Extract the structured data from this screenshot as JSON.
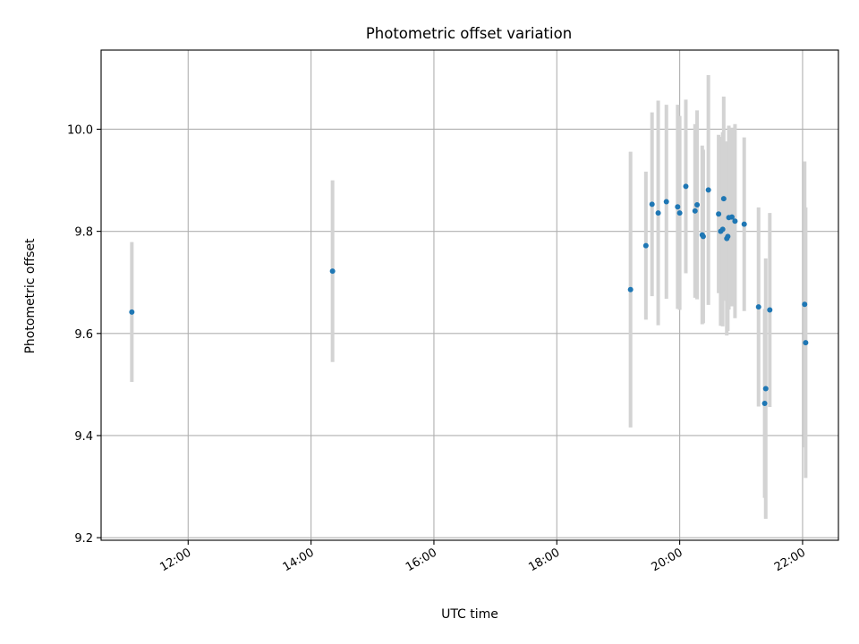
{
  "chart_data": {
    "type": "scatter",
    "title": "Photometric offset variation",
    "xlabel": "UTC time",
    "ylabel": "Photometric offset",
    "x_tick_labels": [
      "12:00",
      "14:00",
      "16:00",
      "18:00",
      "20:00",
      "22:00"
    ],
    "y_tick_labels": [
      "9.2",
      "9.4",
      "9.6",
      "9.8",
      "10.0"
    ],
    "xlim": [
      "10:35",
      "22:35"
    ],
    "ylim": [
      9.195,
      10.155
    ],
    "grid": true,
    "colors": {
      "marker": "#1f77b4",
      "errorbar": "#d3d3d3"
    },
    "series": [
      {
        "points": [
          {
            "x": "11:05",
            "y": 9.642,
            "err": 0.137
          },
          {
            "x": "14:21",
            "y": 9.722,
            "err": 0.178
          },
          {
            "x": "19:12",
            "y": 9.686,
            "err": 0.27
          },
          {
            "x": "19:27",
            "y": 9.772,
            "err": 0.145
          },
          {
            "x": "19:33",
            "y": 9.853,
            "err": 0.18
          },
          {
            "x": "19:39",
            "y": 9.836,
            "err": 0.22
          },
          {
            "x": "19:47",
            "y": 9.858,
            "err": 0.19
          },
          {
            "x": "19:58",
            "y": 9.848,
            "err": 0.2
          },
          {
            "x": "20:00",
            "y": 9.836,
            "err": 0.19
          },
          {
            "x": "20:06",
            "y": 9.888,
            "err": 0.17
          },
          {
            "x": "20:15",
            "y": 9.84,
            "err": 0.17
          },
          {
            "x": "20:17",
            "y": 9.852,
            "err": 0.185
          },
          {
            "x": "20:22",
            "y": 9.793,
            "err": 0.175
          },
          {
            "x": "20:23",
            "y": 9.79,
            "err": 0.17
          },
          {
            "x": "20:28",
            "y": 9.881,
            "err": 0.225
          },
          {
            "x": "20:38",
            "y": 9.834,
            "err": 0.155
          },
          {
            "x": "20:40",
            "y": 9.8,
            "err": 0.185
          },
          {
            "x": "20:42",
            "y": 9.804,
            "err": 0.19
          },
          {
            "x": "20:43",
            "y": 9.864,
            "err": 0.2
          },
          {
            "x": "20:46",
            "y": 9.786,
            "err": 0.19
          },
          {
            "x": "20:47",
            "y": 9.79,
            "err": 0.185
          },
          {
            "x": "20:48",
            "y": 9.827,
            "err": 0.18
          },
          {
            "x": "20:51",
            "y": 9.828,
            "err": 0.175
          },
          {
            "x": "20:54",
            "y": 9.82,
            "err": 0.19
          },
          {
            "x": "21:03",
            "y": 9.814,
            "err": 0.17
          },
          {
            "x": "21:17",
            "y": 9.652,
            "err": 0.195
          },
          {
            "x": "21:23",
            "y": 9.463,
            "err": 0.185
          },
          {
            "x": "21:24",
            "y": 9.492,
            "err": 0.255
          },
          {
            "x": "21:28",
            "y": 9.646,
            "err": 0.19
          },
          {
            "x": "22:02",
            "y": 9.657,
            "err": 0.28
          },
          {
            "x": "22:03",
            "y": 9.582,
            "err": 0.265
          }
        ]
      }
    ]
  }
}
